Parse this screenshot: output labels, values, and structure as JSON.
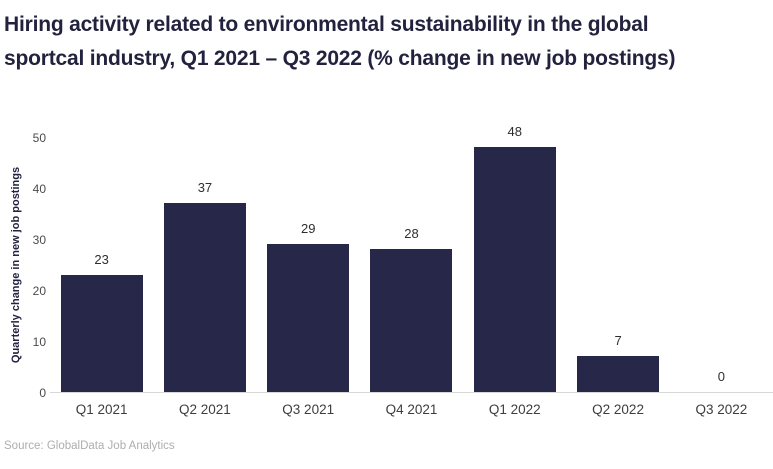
{
  "page": {
    "title": "Hiring activity related to environmental sustainability in the global sportcal industry, Q1 2021 – Q3 2022 (% change in new job postings)",
    "source": "Source: GlobalData Job Analytics"
  },
  "chart_data": {
    "type": "bar",
    "categories": [
      "Q1 2021",
      "Q2 2021",
      "Q3 2021",
      "Q4 2021",
      "Q1 2022",
      "Q2 2022",
      "Q3 2022"
    ],
    "values": [
      23,
      37,
      29,
      28,
      48,
      7,
      0
    ],
    "title": "Hiring activity related to environmental sustainability in the global sportcal industry, Q1 2021 – Q3 2022 (% change in new job postings)",
    "xlabel": "",
    "ylabel": "Quarterly change in new job postings",
    "ylim": [
      0,
      50
    ],
    "yticks": [
      0,
      10,
      20,
      30,
      40,
      50
    ],
    "grid": false,
    "legend": null,
    "bar_color": "#272749",
    "value_labels_shown": true,
    "source": "Source: GlobalData Job Analytics"
  }
}
